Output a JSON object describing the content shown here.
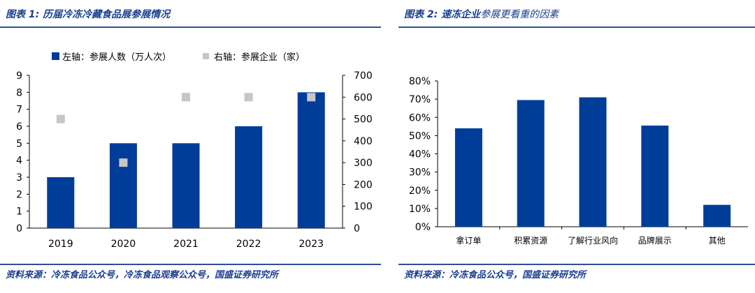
{
  "left_panel": {
    "title_label": "图表 1:",
    "title_text": "历届冷冻冷藏食品展参展情况",
    "source": "资料来源：冷冻食品公众号，冷冻食品观察公众号，国盛证券研究所"
  },
  "right_panel": {
    "title_label": "图表 2:",
    "title_bold": "速冻企业",
    "title_light": "参展更看重的因素",
    "source": "资料来源：冷冻食品公众号，国盛证券研究所"
  },
  "chart_data": [
    {
      "type": "bar",
      "categories": [
        "2019",
        "2020",
        "2021",
        "2022",
        "2023"
      ],
      "series": [
        {
          "name": "左轴：参展人数（万人次）",
          "type": "bar",
          "axis": "left",
          "values": [
            3,
            5,
            5,
            6,
            8
          ],
          "color": "#003d99"
        },
        {
          "name": "右轴：参展企业（家）",
          "type": "scatter",
          "axis": "right",
          "values": [
            500,
            300,
            600,
            600,
            600
          ],
          "color": "#c6c6c6"
        }
      ],
      "y_left": {
        "range": [
          0,
          9
        ],
        "ticks": [
          "0",
          "1",
          "2",
          "3",
          "4",
          "5",
          "6",
          "7",
          "8",
          "9"
        ]
      },
      "y_right": {
        "range": [
          0,
          700
        ],
        "ticks": [
          "0",
          "100",
          "200",
          "300",
          "400",
          "500",
          "600",
          "700"
        ]
      },
      "legend_position": "top",
      "grid": false
    },
    {
      "type": "bar",
      "categories": [
        "拿订单",
        "积累资源",
        "了解行业风向",
        "品牌展示",
        "其他"
      ],
      "values": [
        0.54,
        0.695,
        0.71,
        0.555,
        0.12
      ],
      "color": "#003d99",
      "y": {
        "range": [
          0,
          0.8
        ],
        "ticks": [
          "0%",
          "10%",
          "20%",
          "30%",
          "40%",
          "50%",
          "60%",
          "70%",
          "80%"
        ]
      },
      "grid": false
    }
  ]
}
